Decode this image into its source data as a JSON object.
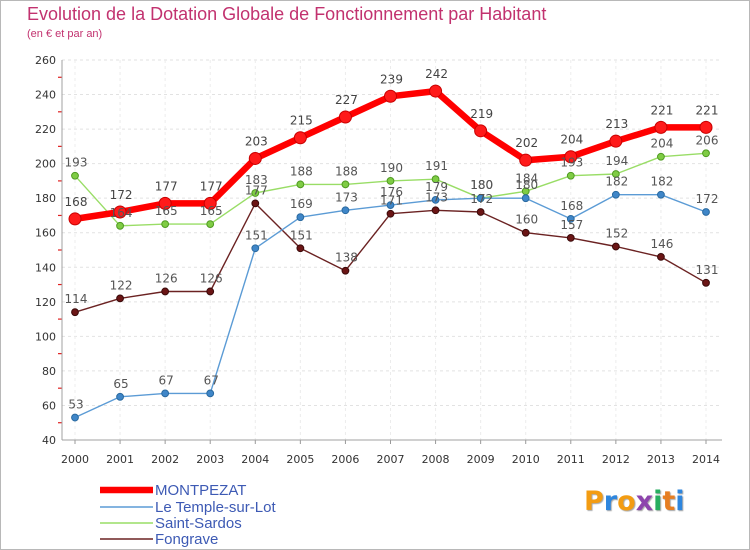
{
  "chart_data": {
    "type": "line",
    "title": "Evolution de la Dotation Globale de Fonctionnement par Habitant",
    "subtitle": "(en € et par an)",
    "x": [
      "2000",
      "2001",
      "2002",
      "2003",
      "2004",
      "2005",
      "2006",
      "2007",
      "2008",
      "2009",
      "2010",
      "2011",
      "2012",
      "2013",
      "2014"
    ],
    "ylim": [
      40,
      260
    ],
    "yticks": [
      40,
      60,
      80,
      100,
      120,
      140,
      160,
      180,
      200,
      220,
      240,
      260
    ],
    "grid": true,
    "legend_position": "bottom-left",
    "data_labels": true,
    "series": [
      {
        "name": "MONTPEZAT",
        "color": "#ff0000",
        "marker_color": "#ff1a1a",
        "values": [
          168,
          172,
          177,
          177,
          203,
          215,
          227,
          239,
          242,
          219,
          202,
          204,
          213,
          221,
          221
        ]
      },
      {
        "name": "Le Temple-sur-Lot",
        "color": "#5b9bd5",
        "marker_color": "#3f86c8",
        "values": [
          53,
          65,
          67,
          67,
          151,
          169,
          173,
          176,
          179,
          180,
          180,
          168,
          182,
          182,
          172
        ]
      },
      {
        "name": "Saint-Sardos",
        "color": "#99dd66",
        "marker_color": "#7fcc44",
        "values": [
          193,
          164,
          165,
          165,
          183,
          188,
          188,
          190,
          191,
          180,
          184,
          193,
          194,
          204,
          206
        ]
      },
      {
        "name": "Fongrave",
        "color": "#6b2222",
        "marker_color": "#6b1515",
        "values": [
          114,
          122,
          126,
          126,
          177,
          151,
          138,
          171,
          173,
          172,
          160,
          157,
          152,
          146,
          131
        ]
      }
    ]
  },
  "legend_text_color": "#3d5ab4",
  "logo": {
    "text": "Proxiti",
    "letter_colors": [
      "#f39c12",
      "#2e86de",
      "#f39c12",
      "#8e44ad",
      "#27ae60",
      "#e67e22",
      "#2e86de"
    ]
  }
}
